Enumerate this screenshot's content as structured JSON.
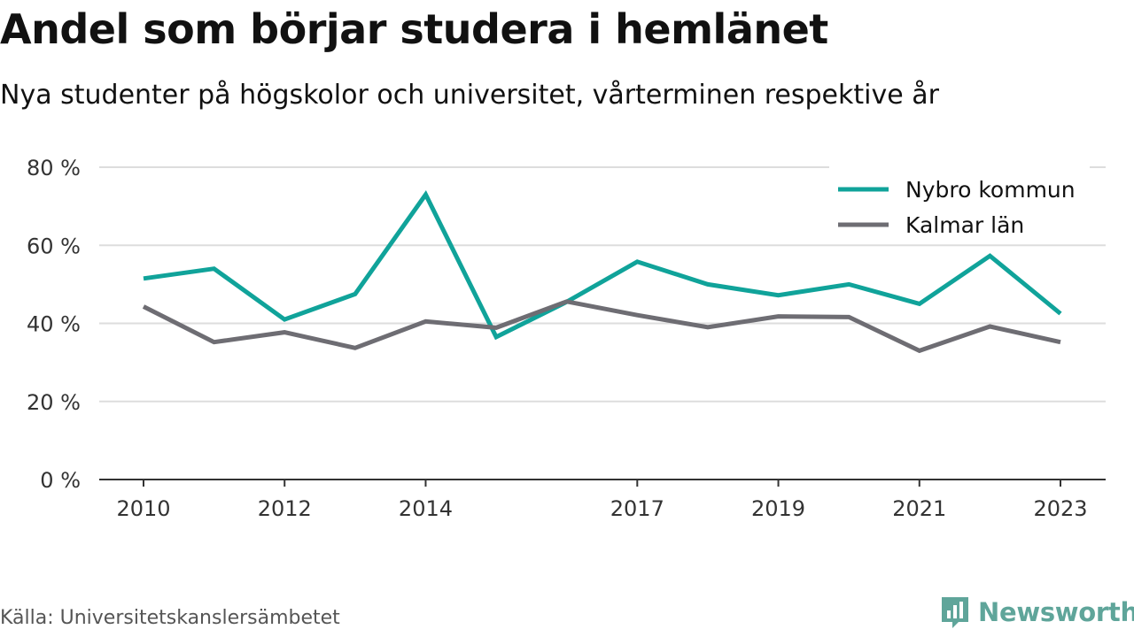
{
  "title": "Andel som börjar studera i hemlänet",
  "subtitle": "Nya studenter på högskolor och universitet, vårterminen respektive år",
  "source": "Källa: Universitetskanslersämbetet",
  "brand": {
    "name": "Newsworthy",
    "icon": "newsworthy-logo-icon",
    "color": "#5fa59a"
  },
  "chart_data": {
    "type": "line",
    "x": [
      2010,
      2011,
      2012,
      2013,
      2014,
      2015,
      2016,
      2017,
      2018,
      2019,
      2020,
      2021,
      2022,
      2023
    ],
    "x_tick_labels": [
      "2010",
      "2012",
      "2014",
      "2017",
      "2019",
      "2021",
      "2023"
    ],
    "y_tick_labels": [
      "0 %",
      "20 %",
      "40 %",
      "60 %",
      "80 %"
    ],
    "y_ticks": [
      0,
      20,
      40,
      60,
      80
    ],
    "ylim": [
      0,
      80
    ],
    "xlim": [
      2010,
      2023
    ],
    "grid": true,
    "legend_position": "top-right",
    "series": [
      {
        "name": "Nybro kommun",
        "color": "#10a39a",
        "values": [
          51.5,
          54,
          41,
          47.5,
          73,
          36.5,
          45.5,
          55.8,
          50,
          47.2,
          50,
          45,
          57.3,
          42.5
        ]
      },
      {
        "name": "Kalmar län",
        "color": "#6e6d73",
        "values": [
          44.3,
          35.2,
          37.7,
          33.7,
          40.5,
          38.9,
          45.6,
          42.1,
          39,
          41.8,
          41.6,
          33,
          39.2,
          35.2
        ]
      }
    ]
  }
}
